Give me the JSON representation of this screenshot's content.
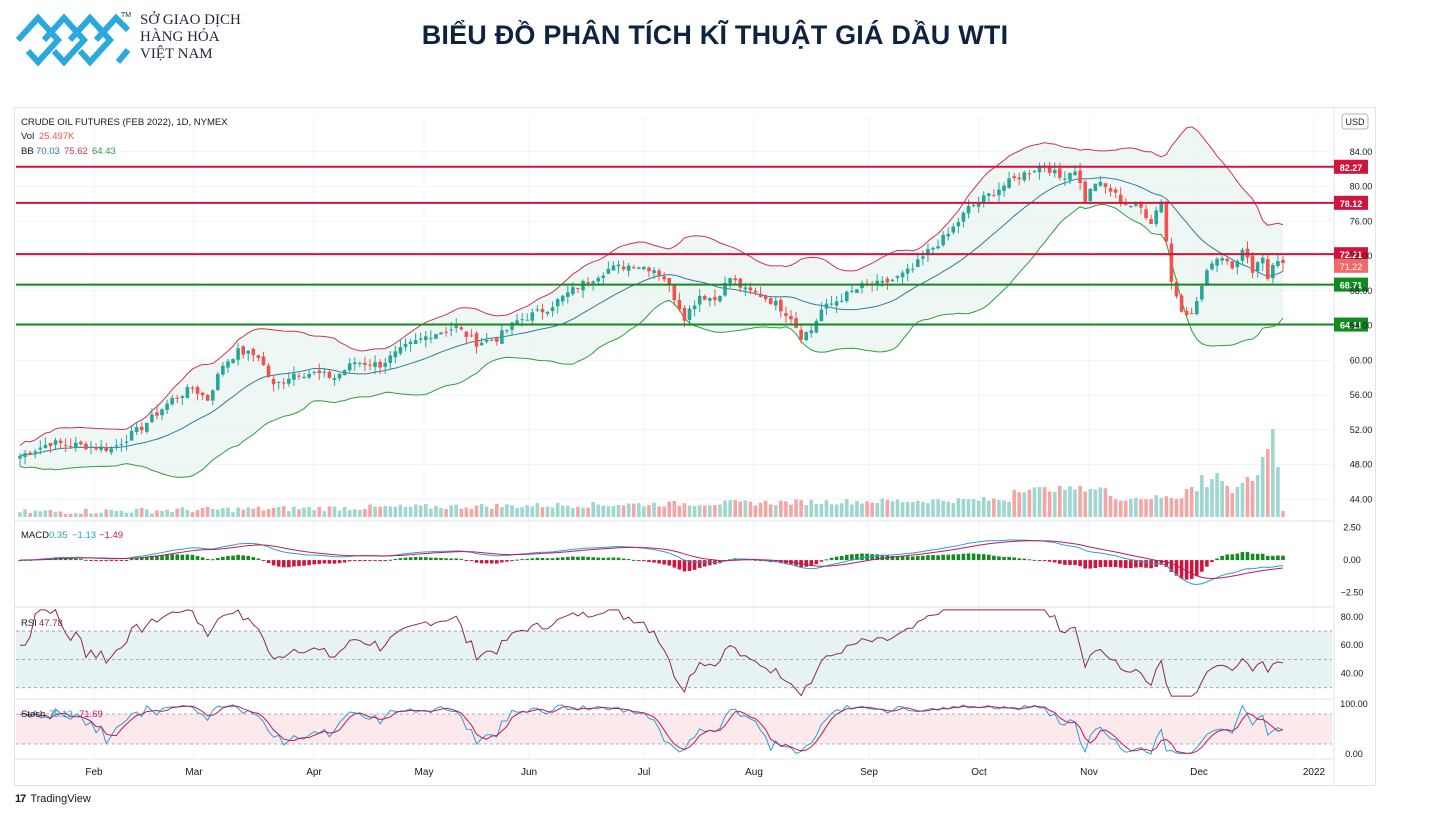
{
  "header": {
    "logo_lines": [
      "SỞ GIAO DỊCH",
      "HÀNG HÓA",
      "VIỆT NAM"
    ],
    "logo_tm": "TM",
    "title": "BIỂU ĐỒ PHÂN TÍCH KĨ THUẬT GIÁ DẦU WTI"
  },
  "footer": {
    "brand": "TradingView"
  },
  "colors": {
    "up": "#26a69a",
    "down": "#ef5350",
    "bb_upper": "#d1324f",
    "bb_lower": "#2e9e3c",
    "bb_basis": "#2f7d9a",
    "resistance": "#d0143c",
    "support": "#138a20",
    "macd": "#2a9fd0",
    "signal": "#c2185b",
    "rsi": "#8e2a4c",
    "stoch_k": "#2a9fd0",
    "stoch_d": "#c2185b"
  },
  "chart_data": {
    "type": "candlestick",
    "symbol_line": "CRUDE OIL FUTURES (FEB 2022), 1D, NYMEX",
    "vol_label": "Vol",
    "vol_value": "25.497K",
    "bb_label": "BB",
    "bb_values": [
      "70.03",
      "75.62",
      "64.43"
    ],
    "currency": "USD",
    "price_axis": {
      "min": 41.5,
      "max": 88,
      "ticks": [
        "84.00",
        "80.00",
        "76.00",
        "72.00",
        "68.00",
        "64.00",
        "60.00",
        "56.00",
        "52.00",
        "48.00",
        "44.00"
      ]
    },
    "x_labels": [
      "Feb",
      "Mar",
      "Apr",
      "May",
      "Jun",
      "Jul",
      "Aug",
      "Sep",
      "Oct",
      "Nov",
      "Dec",
      "2022"
    ],
    "horizontal_levels": [
      {
        "value": 82.27,
        "label": "82.27",
        "kind": "resistance"
      },
      {
        "value": 78.12,
        "label": "78.12",
        "kind": "resistance"
      },
      {
        "value": 72.21,
        "label": "72.21",
        "kind": "resistance"
      },
      {
        "value": 68.71,
        "label": "68.71",
        "kind": "support"
      },
      {
        "value": 64.11,
        "label": "64.11",
        "kind": "support"
      }
    ],
    "last_price": {
      "value": 71.22,
      "label": "71.22"
    },
    "close_anchors": [
      {
        "x": 0,
        "v": 49.0
      },
      {
        "x": 6,
        "v": 50.5
      },
      {
        "x": 12,
        "v": 50.2
      },
      {
        "x": 18,
        "v": 49.8
      },
      {
        "x": 24,
        "v": 52.3
      },
      {
        "x": 30,
        "v": 55.5
      },
      {
        "x": 34,
        "v": 56.8
      },
      {
        "x": 37,
        "v": 55.5
      },
      {
        "x": 40,
        "v": 59.5
      },
      {
        "x": 43,
        "v": 61.0
      },
      {
        "x": 47,
        "v": 60.5
      },
      {
        "x": 50,
        "v": 57.0
      },
      {
        "x": 54,
        "v": 58.5
      },
      {
        "x": 58,
        "v": 58.5
      },
      {
        "x": 62,
        "v": 58.0
      },
      {
        "x": 66,
        "v": 59.8
      },
      {
        "x": 71,
        "v": 59.5
      },
      {
        "x": 76,
        "v": 61.5
      },
      {
        "x": 81,
        "v": 63.0
      },
      {
        "x": 86,
        "v": 63.8
      },
      {
        "x": 90,
        "v": 62.0
      },
      {
        "x": 94,
        "v": 62.5
      },
      {
        "x": 98,
        "v": 64.5
      },
      {
        "x": 104,
        "v": 66.0
      },
      {
        "x": 110,
        "v": 68.5
      },
      {
        "x": 116,
        "v": 70.5
      },
      {
        "x": 121,
        "v": 71.0
      },
      {
        "x": 125,
        "v": 70.5
      },
      {
        "x": 127,
        "v": 69.5
      },
      {
        "x": 131,
        "v": 65.0
      },
      {
        "x": 134,
        "v": 67.5
      },
      {
        "x": 137,
        "v": 67.0
      },
      {
        "x": 140,
        "v": 69.5
      },
      {
        "x": 143,
        "v": 68.0
      },
      {
        "x": 146,
        "v": 67.5
      },
      {
        "x": 149,
        "v": 66.5
      },
      {
        "x": 152,
        "v": 65.0
      },
      {
        "x": 154,
        "v": 62.8
      },
      {
        "x": 156,
        "v": 63.5
      },
      {
        "x": 158,
        "v": 65.8
      },
      {
        "x": 162,
        "v": 67.2
      },
      {
        "x": 166,
        "v": 68.5
      },
      {
        "x": 170,
        "v": 68.8
      },
      {
        "x": 173,
        "v": 69.5
      },
      {
        "x": 176,
        "v": 70.5
      },
      {
        "x": 179,
        "v": 72.5
      },
      {
        "x": 183,
        "v": 74.5
      },
      {
        "x": 187,
        "v": 77.5
      },
      {
        "x": 191,
        "v": 79.0
      },
      {
        "x": 195,
        "v": 80.5
      },
      {
        "x": 199,
        "v": 81.8
      },
      {
        "x": 202,
        "v": 82.5
      },
      {
        "x": 205,
        "v": 81.0
      },
      {
        "x": 208,
        "v": 82.0
      },
      {
        "x": 210,
        "v": 78.5
      },
      {
        "x": 212,
        "v": 80.5
      },
      {
        "x": 215,
        "v": 79.5
      },
      {
        "x": 218,
        "v": 78.0
      },
      {
        "x": 221,
        "v": 77.5
      },
      {
        "x": 223,
        "v": 76.0
      },
      {
        "x": 225,
        "v": 78.5
      },
      {
        "x": 227,
        "v": 69.0
      },
      {
        "x": 229,
        "v": 66.0
      },
      {
        "x": 231,
        "v": 65.2
      },
      {
        "x": 233,
        "v": 68.5
      },
      {
        "x": 235,
        "v": 71.5
      },
      {
        "x": 237,
        "v": 72.0
      },
      {
        "x": 239,
        "v": 71.0
      },
      {
        "x": 241,
        "v": 72.5
      },
      {
        "x": 243,
        "v": 70.5
      },
      {
        "x": 245,
        "v": 72.0
      },
      {
        "x": 246,
        "v": 69.5
      },
      {
        "x": 247,
        "v": 71.2
      }
    ],
    "volume_last_bars": [
      28,
      30,
      26,
      42,
      30,
      38,
      44,
      36,
      31,
      24,
      30,
      34,
      40,
      36,
      42,
      60,
      68,
      88,
      50,
      6
    ],
    "macd": {
      "label": "MACD",
      "values": [
        "0.35",
        "−1.13",
        "−1.49"
      ],
      "ticks": [
        "2.50",
        "0.00",
        "−2.50"
      ],
      "range": [
        -3.6,
        3.0
      ]
    },
    "rsi": {
      "label": "RSI",
      "value": "47.78",
      "ticks": [
        "80.00",
        "60.00",
        "40.00"
      ],
      "range": [
        22,
        87
      ],
      "band": [
        30,
        70
      ],
      "mid": 50
    },
    "stoch": {
      "label": "Stoch",
      "values": [
        "75.13",
        "71.69"
      ],
      "ticks": [
        "100.00",
        "0.00"
      ],
      "range": [
        -10,
        110
      ],
      "band": [
        20,
        80
      ]
    }
  }
}
